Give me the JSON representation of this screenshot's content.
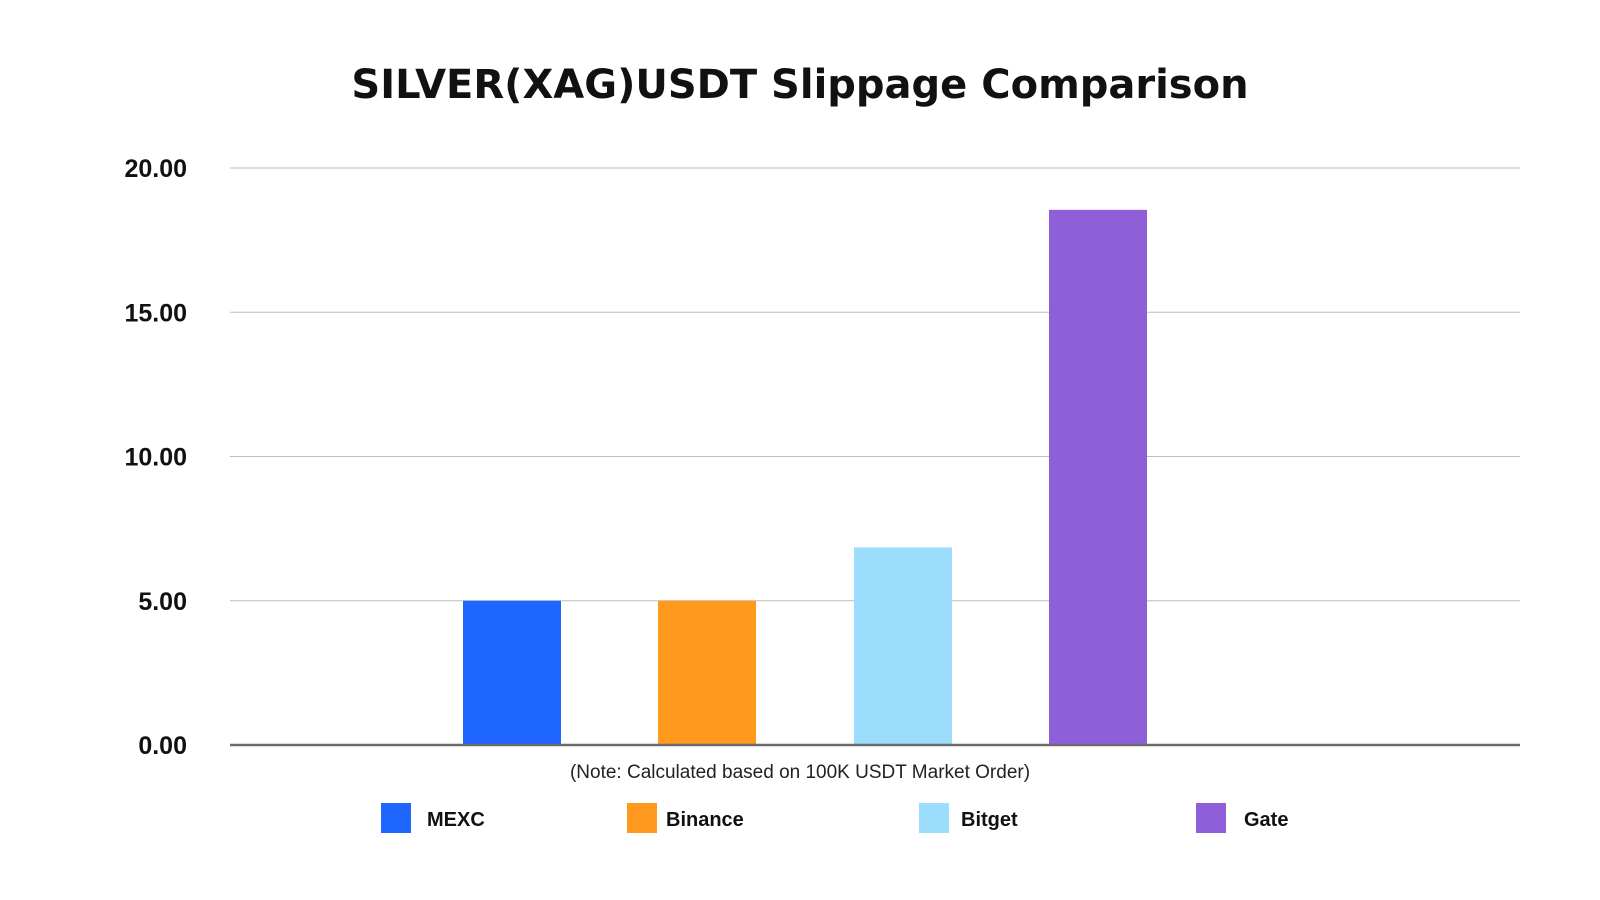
{
  "chart_data": {
    "type": "bar",
    "title": "SILVER(XAG)USDT Slippage Comparison",
    "note": "(Note: Calculated based on 100K USDT Market Order)",
    "categories": [
      "MEXC",
      "Binance",
      "Bitget",
      "Gate"
    ],
    "values": [
      5.0,
      5.0,
      6.85,
      18.55
    ],
    "colors": [
      "#1f66ff",
      "#ff9a1f",
      "#9cdcfd",
      "#8e5fd8"
    ],
    "ylim": [
      0,
      20
    ],
    "yticks": [
      0,
      5,
      10,
      15,
      20
    ],
    "ytick_labels": [
      "0.00",
      "5.00",
      "10.00",
      "15.00",
      "20.00"
    ],
    "grid": true,
    "legend_position": "bottom",
    "xlabel": "",
    "ylabel": ""
  }
}
